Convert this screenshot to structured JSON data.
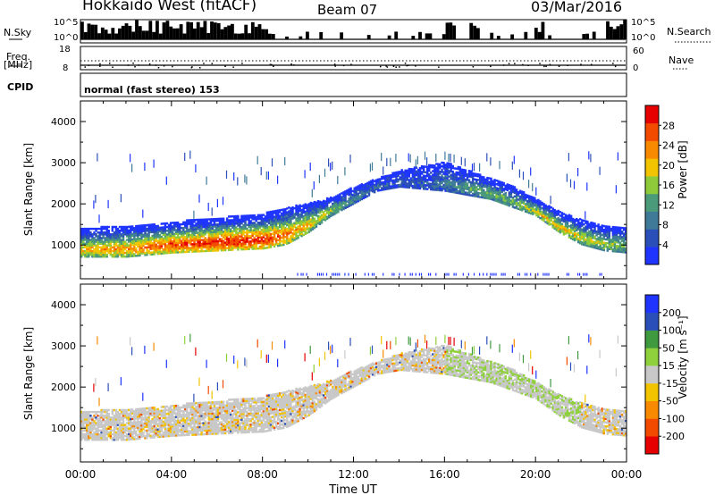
{
  "header": {
    "station": "Hokkaido West (fitACF)",
    "beam": "Beam 07",
    "date": "03/Mar/2016"
  },
  "aux_panels": {
    "nsky_label": "N.Sky",
    "nsky_ticks": [
      "10^5",
      "10^0"
    ],
    "nsearch_label": "N.Search",
    "nsearch_ticks": [
      "10^5",
      "10^0"
    ],
    "freq_label": "Freq.",
    "freq_unit": "[MHz]",
    "freq_ticks": [
      "18",
      "8"
    ],
    "nave_label": "Nave",
    "nave_ticks": [
      "60",
      "0"
    ],
    "cpid_label": "CPID",
    "cpid_text": "normal (fast stereo) 153"
  },
  "colors": {
    "power": [
      "#1f35ff",
      "#2b4fb8",
      "#3f7a98",
      "#4b9a7a",
      "#8fca3a",
      "#f2c400",
      "#f78a00",
      "#f24b00",
      "#e60000"
    ],
    "velocity": [
      "#e60000",
      "#f24b00",
      "#f78a00",
      "#f2c400",
      "#c8c8c8",
      "#8fd13c",
      "#3f9a3f",
      "#2b4fb8",
      "#1f35ff"
    ]
  },
  "chart_data": [
    {
      "type": "heatmap",
      "title": "",
      "xlabel": "Time UT",
      "ylabel": "Slant Range [km]",
      "x_ticks": [
        "00:00",
        "04:00",
        "08:00",
        "12:00",
        "16:00",
        "20:00",
        "00:00"
      ],
      "y_ticks": [
        "1000",
        "2000",
        "3000",
        "4000"
      ],
      "ylim": [
        180,
        4500
      ],
      "xlim_hours": [
        0,
        24
      ],
      "grid": false,
      "colorbar": {
        "label": "Power [dB]",
        "ticks": [
          "4",
          "8",
          "12",
          "16",
          "20",
          "24",
          "28"
        ],
        "range": [
          0,
          30
        ]
      },
      "echo_band": {
        "hours": [
          0,
          2,
          4,
          6,
          8,
          9,
          10,
          11,
          12,
          13,
          14,
          15,
          16,
          17,
          18,
          19,
          20,
          21,
          22,
          23,
          24
        ],
        "lower_km": [
          700,
          700,
          800,
          850,
          900,
          1000,
          1300,
          1700,
          2000,
          2300,
          2400,
          2350,
          2300,
          2200,
          2100,
          1900,
          1700,
          1300,
          1000,
          850,
          800
        ],
        "upper_km": [
          1400,
          1450,
          1550,
          1650,
          1750,
          1900,
          2000,
          2150,
          2400,
          2600,
          2800,
          2900,
          3000,
          2800,
          2600,
          2400,
          2100,
          1800,
          1600,
          1450,
          1400
        ],
        "peak_power_db": [
          20,
          22,
          26,
          28,
          28,
          24,
          20,
          16,
          10,
          6,
          6,
          6,
          8,
          12,
          14,
          14,
          18,
          20,
          18,
          16,
          14
        ]
      }
    },
    {
      "type": "heatmap",
      "title": "",
      "xlabel": "Time UT",
      "ylabel": "Slant Range [km]",
      "x_ticks": [
        "00:00",
        "04:00",
        "08:00",
        "12:00",
        "16:00",
        "20:00",
        "00:00"
      ],
      "y_ticks": [
        "1000",
        "2000",
        "3000",
        "4000"
      ],
      "ylim": [
        180,
        4500
      ],
      "xlim_hours": [
        0,
        24
      ],
      "grid": false,
      "colorbar": {
        "label": "Velocity [m s⁻¹]",
        "ticks": [
          "-200",
          "-100",
          "-50",
          "-15",
          "15",
          "50",
          "100",
          "200"
        ],
        "range": [
          -250,
          250
        ]
      },
      "dominant_velocity_ms": "-15 to 15"
    }
  ]
}
